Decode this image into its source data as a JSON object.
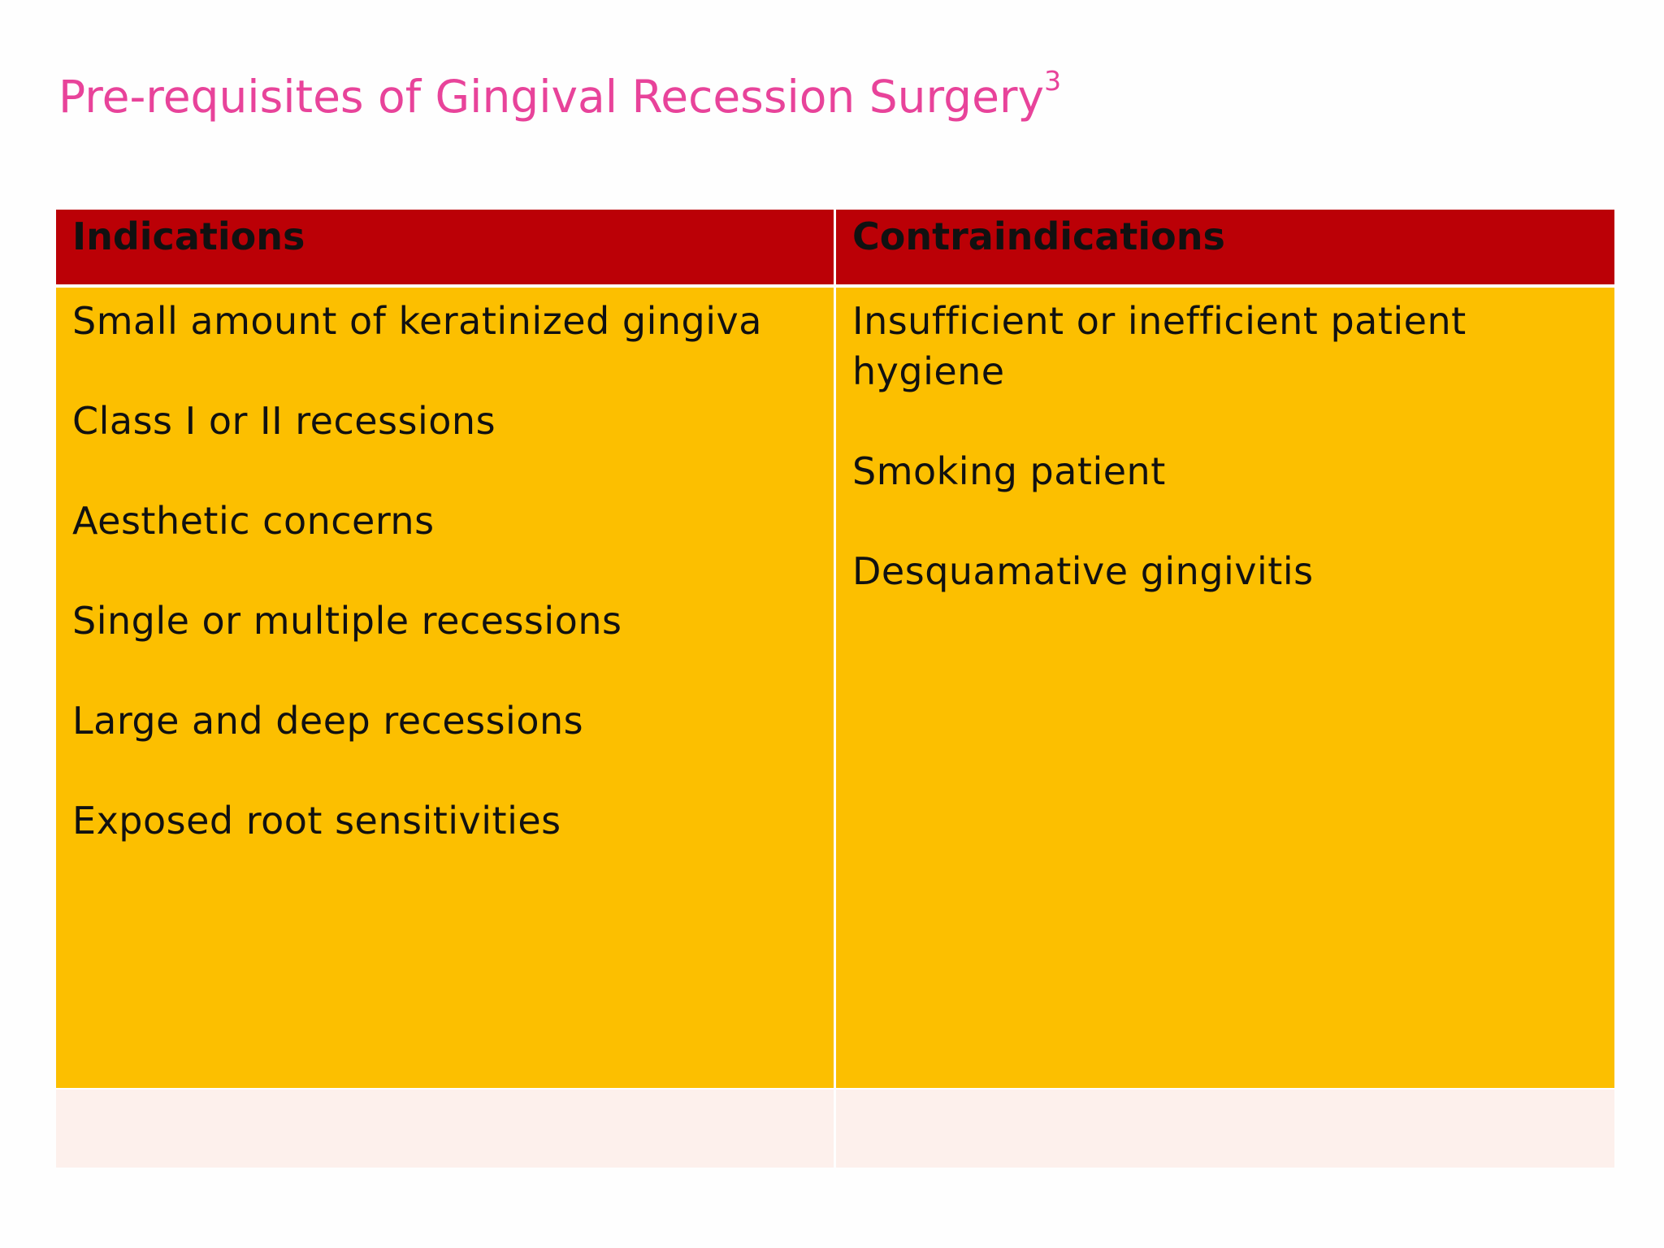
{
  "slide": {
    "title": "Pre-requisites of Gingival Recession Surgery",
    "title_superscript": "3",
    "title_color": "#e8439a"
  },
  "table": {
    "header_color": "#bb0006",
    "body_color": "#fcbf00",
    "footer_color": "#fdf0ec",
    "columns": [
      {
        "header": "Indications",
        "items": [
          "Small amount of keratinized gingiva",
          "Class I or II recessions",
          "Aesthetic concerns",
          "Single or multiple recessions",
          "Large and deep recessions",
          "Exposed root sensitivities"
        ]
      },
      {
        "header": "Contraindications",
        "items": [
          "Insufficient or inefficient patient hygiene",
          "Smoking patient",
          "Desquamative gingivitis"
        ]
      }
    ]
  }
}
